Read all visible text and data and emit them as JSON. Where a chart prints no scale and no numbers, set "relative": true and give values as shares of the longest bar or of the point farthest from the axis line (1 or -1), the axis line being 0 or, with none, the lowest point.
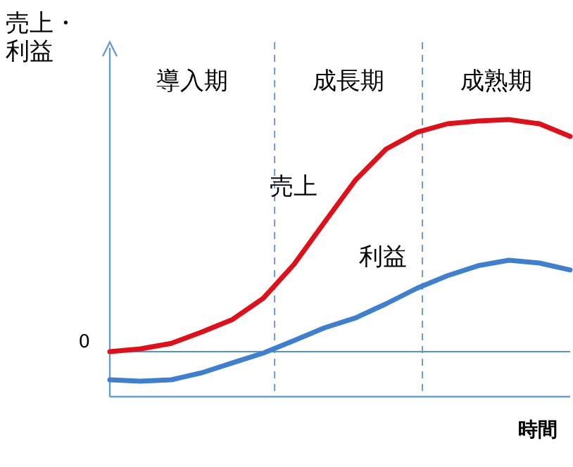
{
  "chart_data": {
    "type": "line",
    "relative": true,
    "ylabel": "売上・利益",
    "xlabel": "時間",
    "categories": [
      null,
      null,
      null,
      null,
      null,
      null,
      null,
      null,
      null,
      null,
      null,
      null,
      null,
      null,
      null,
      null
    ],
    "series": [
      {
        "name": "売上",
        "color": "#e0101a",
        "values": [
          0,
          0.012,
          0.036,
          0.085,
          0.139,
          0.23,
          0.376,
          0.558,
          0.739,
          0.873,
          0.945,
          0.982,
          0.994,
          1,
          0.982,
          0.927
        ]
      },
      {
        "name": "利益",
        "color": "#3f7fcf",
        "values": [
          -0.121,
          -0.127,
          -0.121,
          -0.091,
          -0.048,
          -0.006,
          0.048,
          0.103,
          0.145,
          0.206,
          0.273,
          0.327,
          0.37,
          0.394,
          0.382,
          0.352
        ]
      }
    ],
    "ref_lines": [
      {
        "axis": "y",
        "value": 0,
        "label": "0",
        "color": "#5b8fd6",
        "line_style": "solid"
      }
    ],
    "annotations": [
      "導入期",
      "成長期",
      "成熟期"
    ],
    "marker": "none",
    "line_style": "solid"
  }
}
